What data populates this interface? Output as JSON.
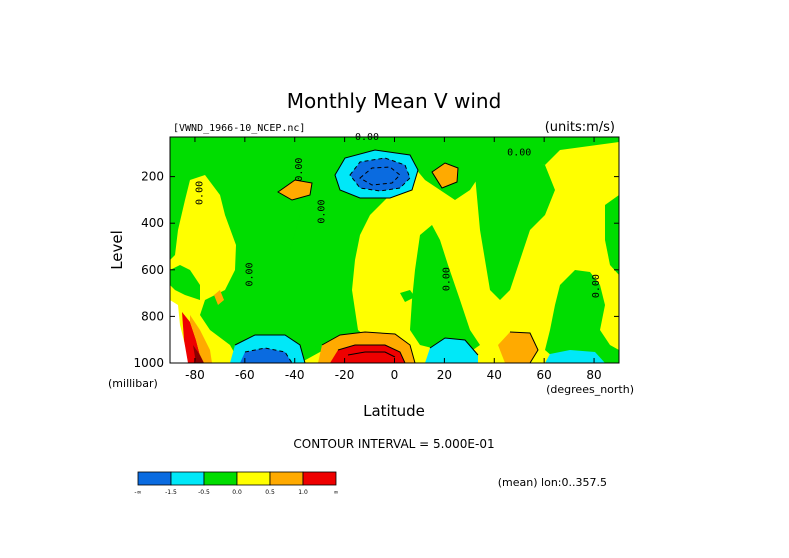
{
  "chart_data": {
    "type": "contour",
    "title": "Monthly Mean V wind",
    "dataset_label": "[VWND_1966-10_NCEP.nc]",
    "units_label": "(units:m/s)",
    "xlabel": "Latitude",
    "x_unit_label": "(degrees_north)",
    "ylabel": "Level",
    "y_unit_label": "(millibar)",
    "xlim": [
      -90,
      90
    ],
    "ylim": [
      1000,
      30
    ],
    "x_ticks": [
      -80,
      -60,
      -40,
      -20,
      0,
      20,
      40,
      60,
      80
    ],
    "y_ticks": [
      200,
      400,
      600,
      800,
      1000
    ],
    "contour_interval_text": "CONTOUR INTERVAL = 5.000E-01",
    "mean_text": "(mean) lon:0..357.5",
    "contour_labels": [
      {
        "text": "0.00",
        "lat": -11,
        "lev": 42
      },
      {
        "text": "0.00",
        "lat": 50,
        "lev": 110
      },
      {
        "text": "0.00",
        "lat": -77,
        "lev": 270
      },
      {
        "text": "0.00",
        "lat": -57,
        "lev": 620
      },
      {
        "text": "0.00",
        "lat": -37,
        "lev": 170
      },
      {
        "text": "0.00",
        "lat": -28,
        "lev": 350
      },
      {
        "text": "0.00",
        "lat": 22,
        "lev": 640
      },
      {
        "text": "0.00",
        "lat": 82,
        "lev": 670
      }
    ],
    "levels": [
      -1.5,
      -0.5,
      0.0,
      0.5,
      1.0
    ],
    "colorbar": {
      "colors": [
        "#0a6be0",
        "#00e8f8",
        "#00dd00",
        "#ffff00",
        "#ffaa00",
        "#ee0000"
      ],
      "tick_labels": [
        "-∞",
        "-1.5",
        "-0.5",
        "0.0",
        "0.5",
        "1.0",
        "∞"
      ]
    },
    "background_color": "#ffff00",
    "regions": [
      {
        "value_class": "-0.5..0.0",
        "color": "#00dd00",
        "desc": "upper troposphere band"
      },
      {
        "value_class": "-1.5..-0.5",
        "color": "#00e8f8",
        "desc": "core near 10S 180mb"
      },
      {
        "value_class": "<-1.5",
        "color": "#0a6be0",
        "desc": "strong northerly core near 10S 180mb"
      },
      {
        "value_class": "0.5..1.0",
        "color": "#ffaa00"
      },
      {
        "value_class": ">1.0",
        "color": "#ee0000",
        "desc": "near-surface southerly core near 10S 950mb"
      }
    ]
  }
}
